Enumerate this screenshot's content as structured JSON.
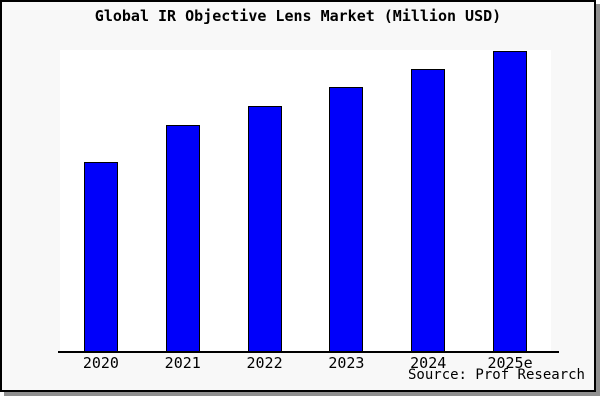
{
  "chart_data": {
    "type": "bar",
    "title": "Global IR Objective Lens Market (Million USD)",
    "categories": [
      "2020",
      "2021",
      "2022",
      "2023",
      "2024",
      "2025e"
    ],
    "values": [
      62.8,
      75.1,
      81.4,
      87.7,
      93.7,
      99.7
    ],
    "values_note": "no y-axis scale or data labels shown; values are relative bar heights with tallest bar (2025e) = 100",
    "xlabel": "",
    "ylabel": "",
    "ylim": [
      0,
      100
    ],
    "grid": false,
    "legend": false,
    "source": "Source: Prof Research",
    "colors": {
      "bar_fill": "#0000fa",
      "bar_border": "#000000",
      "plot_bg": "#ffffff",
      "canvas_bg": "#f8f8f8",
      "axis": "#000000",
      "text": "#000000"
    }
  }
}
